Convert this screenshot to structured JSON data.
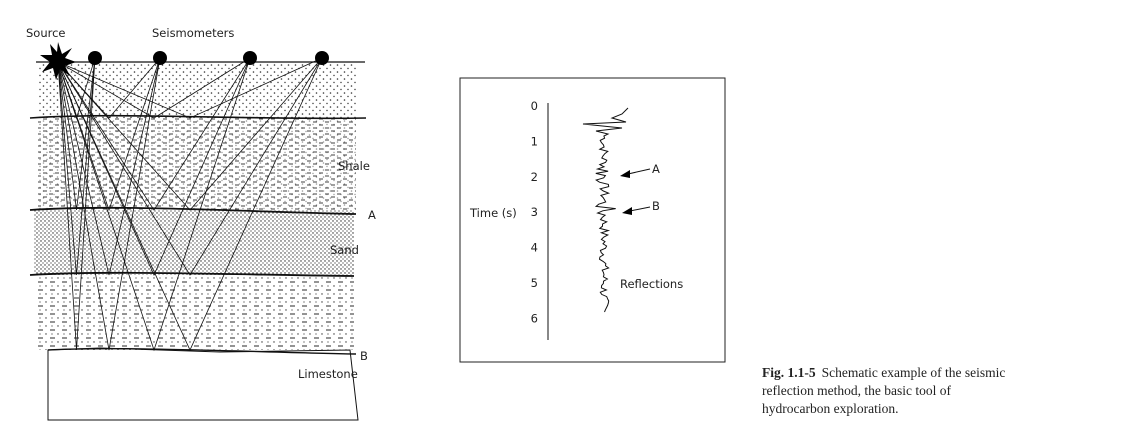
{
  "section": {
    "source_label": "Source",
    "seismometers_label": "Seismometers",
    "layers": [
      "Shale",
      "Sand",
      "Limestone"
    ],
    "horizons": [
      "A",
      "B"
    ]
  },
  "trace": {
    "axis_label": "Time (s)",
    "ticks": [
      0,
      1,
      2,
      3,
      4,
      5,
      6
    ],
    "arrows": [
      "A",
      "B"
    ],
    "label": "Reflections"
  },
  "caption": {
    "label": "Fig. 1.1-5",
    "lines": [
      "Schematic example of the seismic",
      "reflection method, the basic tool of",
      "hydrocarbon exploration."
    ]
  }
}
